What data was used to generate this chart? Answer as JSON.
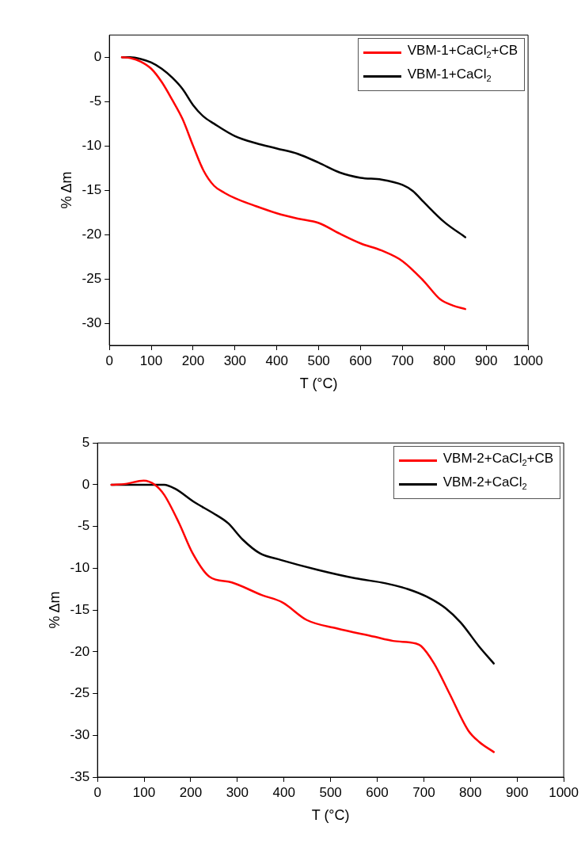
{
  "chart_data": [
    {
      "type": "line",
      "xlabel": "T (°C)",
      "ylabel": "% Δm",
      "xlim": [
        0,
        1000
      ],
      "xticks": [
        0,
        100,
        200,
        300,
        400,
        500,
        600,
        700,
        800,
        900,
        1000
      ],
      "ylim": [
        -32.5,
        2.5
      ],
      "yticks": [
        -30,
        -25,
        -20,
        -15,
        -10,
        -5,
        0
      ],
      "grid": false,
      "legend": "top right",
      "marker": "none",
      "line_style": "solid",
      "series": [
        {
          "name": "VBM-1+CaCl$_{2}$+CB",
          "color": "#ff0000",
          "x": [
            30,
            50,
            75,
            100,
            125,
            150,
            175,
            200,
            225,
            250,
            275,
            300,
            350,
            400,
            450,
            500,
            550,
            600,
            650,
            700,
            750,
            790,
            820,
            850
          ],
          "values": [
            0,
            -0.1,
            -0.5,
            -1.3,
            -2.8,
            -4.8,
            -7.0,
            -10.0,
            -12.8,
            -14.5,
            -15.3,
            -15.9,
            -16.8,
            -17.6,
            -18.2,
            -18.7,
            -19.9,
            -21.0,
            -21.8,
            -23.0,
            -25.2,
            -27.3,
            -28.0,
            -28.4
          ]
        },
        {
          "name": "VBM-1+CaCl$_{2}$",
          "color": "#000000",
          "x": [
            30,
            50,
            75,
            100,
            125,
            150,
            175,
            200,
            225,
            250,
            300,
            350,
            400,
            450,
            500,
            550,
            600,
            650,
            700,
            725,
            750,
            800,
            850
          ],
          "values": [
            0,
            0,
            -0.2,
            -0.6,
            -1.3,
            -2.3,
            -3.6,
            -5.4,
            -6.7,
            -7.5,
            -8.9,
            -9.7,
            -10.3,
            -10.9,
            -11.9,
            -13.0,
            -13.6,
            -13.8,
            -14.4,
            -15.1,
            -16.3,
            -18.6,
            -20.3
          ]
        }
      ]
    },
    {
      "type": "line",
      "xlabel": "T (°C)",
      "ylabel": "% Δm",
      "xlim": [
        0,
        1000
      ],
      "xticks": [
        0,
        100,
        200,
        300,
        400,
        500,
        600,
        700,
        800,
        900,
        1000
      ],
      "ylim": [
        -35,
        5
      ],
      "yticks": [
        -35,
        -30,
        -25,
        -20,
        -15,
        -10,
        -5,
        0,
        5
      ],
      "grid": false,
      "legend": "top right",
      "marker": "none",
      "line_style": "solid",
      "series": [
        {
          "name": "VBM-2+CaCl$_{2}$+CB",
          "color": "#ff0000",
          "x": [
            30,
            60,
            99,
            123,
            143,
            175,
            204,
            240,
            288,
            352,
            397,
            449,
            513,
            594,
            634,
            682,
            694,
            722,
            755,
            795,
            819,
            850
          ],
          "values": [
            0,
            0.1,
            0.5,
            0,
            -1.2,
            -4.6,
            -8.2,
            -11.0,
            -11.7,
            -13.2,
            -14.1,
            -16.2,
            -17.2,
            -18.2,
            -18.7,
            -19.0,
            -19.3,
            -21.4,
            -25.0,
            -29.4,
            -30.8,
            -32.0
          ]
        },
        {
          "name": "VBM-2+CaCl$_{2}$",
          "color": "#000000",
          "x": [
            30,
            143,
            167,
            208,
            248,
            280,
            312,
            348,
            393,
            473,
            553,
            618,
            666,
            706,
            747,
            779,
            819,
            850
          ],
          "values": [
            0,
            0,
            -0.5,
            -2.1,
            -3.4,
            -4.6,
            -6.6,
            -8.2,
            -9.0,
            -10.2,
            -11.2,
            -11.8,
            -12.5,
            -13.4,
            -14.8,
            -16.5,
            -19.4,
            -21.4
          ]
        }
      ]
    }
  ]
}
